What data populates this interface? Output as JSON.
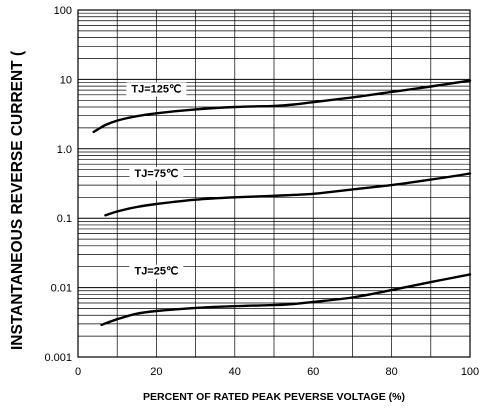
{
  "chart_data": {
    "type": "line",
    "title": "",
    "xlabel": "PERCENT OF RATED PEAK PEVERSE VOLTAGE (%)",
    "ylabel": "INSTANTANEOUS REVERSE CURRENT (",
    "xlim": [
      0,
      100
    ],
    "ylim": [
      0.001,
      100
    ],
    "yscale": "log",
    "grid": true,
    "x_ticks": [
      0,
      20,
      40,
      60,
      80,
      100
    ],
    "x_tick_labels": [
      "0",
      "20",
      "40",
      "60",
      "80",
      "100"
    ],
    "y_ticks": [
      0.001,
      0.01,
      0.1,
      1,
      10,
      100
    ],
    "y_tick_labels": [
      "0.001",
      "0.01",
      "0.1",
      "1.0",
      "10",
      "100"
    ],
    "series": [
      {
        "name": "TJ=125℃",
        "label_x": 20,
        "label_y": 7.4,
        "points": [
          [
            4,
            1.75
          ],
          [
            7,
            2.2
          ],
          [
            10,
            2.55
          ],
          [
            15,
            2.95
          ],
          [
            20,
            3.25
          ],
          [
            30,
            3.7
          ],
          [
            40,
            4.0
          ],
          [
            50,
            4.15
          ],
          [
            55,
            4.35
          ],
          [
            60,
            4.7
          ],
          [
            70,
            5.5
          ],
          [
            80,
            6.6
          ],
          [
            90,
            7.9
          ],
          [
            100,
            9.6
          ]
        ]
      },
      {
        "name": "TJ=75℃",
        "label_x": 20,
        "label_y": 0.45,
        "points": [
          [
            7,
            0.11
          ],
          [
            10,
            0.125
          ],
          [
            15,
            0.145
          ],
          [
            20,
            0.16
          ],
          [
            30,
            0.185
          ],
          [
            40,
            0.2
          ],
          [
            50,
            0.21
          ],
          [
            60,
            0.225
          ],
          [
            70,
            0.26
          ],
          [
            80,
            0.3
          ],
          [
            90,
            0.36
          ],
          [
            100,
            0.44
          ]
        ]
      },
      {
        "name": "TJ=25℃",
        "label_x": 20,
        "label_y": 0.0175,
        "points": [
          [
            6,
            0.0029
          ],
          [
            10,
            0.0035
          ],
          [
            15,
            0.0042
          ],
          [
            20,
            0.0046
          ],
          [
            30,
            0.0051
          ],
          [
            40,
            0.0054
          ],
          [
            50,
            0.0056
          ],
          [
            55,
            0.0058
          ],
          [
            60,
            0.0062
          ],
          [
            70,
            0.0072
          ],
          [
            80,
            0.0092
          ],
          [
            90,
            0.012
          ],
          [
            100,
            0.0155
          ]
        ]
      }
    ]
  }
}
